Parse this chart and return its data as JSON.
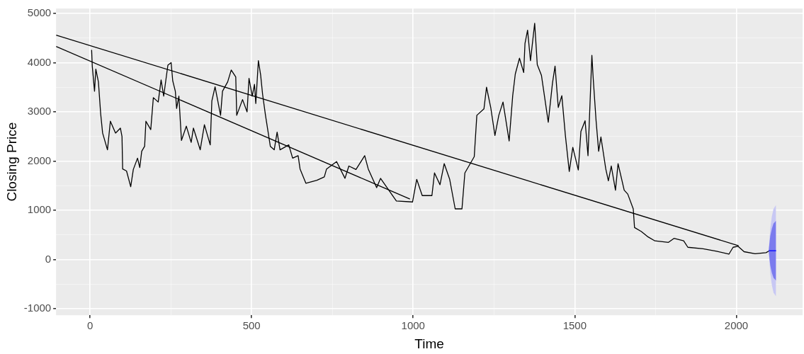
{
  "chart_data": {
    "type": "line",
    "xlabel": "Time",
    "ylabel": "Closing Price",
    "grid": true,
    "legend": false,
    "marker": "none",
    "line_style": "solid",
    "xlim": [
      -105,
      2205
    ],
    "ylim": [
      -1130,
      5100
    ],
    "xticks": [
      0,
      {
        "value": 250,
        "label": null
      },
      500,
      {
        "value": 750,
        "label": null
      },
      1000,
      {
        "value": 1250,
        "label": null
      },
      1500,
      {
        "value": 1750,
        "label": null
      },
      2000
    ],
    "yticks": [
      -1000,
      {
        "value": -500,
        "label": null
      },
      0,
      {
        "value": 500,
        "label": null
      },
      1000,
      {
        "value": 1500,
        "label": null
      },
      2000,
      {
        "value": 2500,
        "label": null
      },
      3000,
      {
        "value": 3500,
        "label": null
      },
      4000,
      {
        "value": 4500,
        "label": null
      },
      5000
    ],
    "series": [
      {
        "color": "#000000",
        "x": [
          5,
          7,
          14,
          18,
          26,
          33,
          39,
          54,
          63,
          79,
          94,
          99,
          101,
          113,
          126,
          134,
          147,
          154,
          160,
          169,
          173,
          188,
          196,
          211,
          220,
          228,
          241,
          251,
          256,
          264,
          268,
          275,
          283,
          298,
          313,
          320,
          341,
          354,
          372,
          377,
          387,
          404,
          410,
          426,
          437,
          451,
          454,
          472,
          486,
          492,
          502,
          509,
          513,
          521,
          528,
          534,
          543,
          558,
          570,
          579,
          588,
          615,
          627,
          644,
          650,
          668,
          702,
          725,
          732,
          763,
          789,
          801,
          823,
          850,
          861,
          887,
          899,
          948,
          998,
          1011,
          1028,
          1058,
          1066,
          1083,
          1096,
          1113,
          1130,
          1151,
          1160,
          1189,
          1197,
          1219,
          1227,
          1240,
          1253,
          1265,
          1278,
          1297,
          1308,
          1316,
          1329,
          1342,
          1346,
          1354,
          1363,
          1376,
          1384,
          1397,
          1418,
          1431,
          1439,
          1449,
          1460,
          1471,
          1483,
          1494,
          1511,
          1519,
          1532,
          1541,
          1553,
          1557,
          1566,
          1574,
          1581,
          1596,
          1604,
          1613,
          1626,
          1634,
          1653,
          1664,
          1681,
          1685,
          1706,
          1727,
          1748,
          1790,
          1807,
          1837,
          1850,
          1897,
          1939,
          1977,
          1990,
          2005,
          2024,
          2058,
          2092,
          2100
        ],
        "values": [
          4260,
          3930,
          3420,
          3870,
          3610,
          2960,
          2570,
          2230,
          2810,
          2570,
          2670,
          2500,
          1840,
          1800,
          1480,
          1830,
          2060,
          1870,
          2200,
          2300,
          2810,
          2640,
          3290,
          3200,
          3650,
          3320,
          3950,
          4000,
          3630,
          3420,
          3070,
          3320,
          2420,
          2710,
          2380,
          2670,
          2230,
          2740,
          2330,
          3220,
          3510,
          2930,
          3420,
          3610,
          3850,
          3710,
          2930,
          3250,
          3000,
          3680,
          3320,
          3560,
          3170,
          4040,
          3750,
          3360,
          2930,
          2300,
          2230,
          2590,
          2230,
          2330,
          2060,
          2110,
          1840,
          1550,
          1610,
          1680,
          1840,
          1990,
          1650,
          1900,
          1830,
          2110,
          1840,
          1460,
          1650,
          1190,
          1170,
          1630,
          1300,
          1300,
          1760,
          1520,
          1950,
          1630,
          1030,
          1030,
          1760,
          2090,
          2930,
          3060,
          3500,
          3090,
          2520,
          2930,
          3200,
          2410,
          3330,
          3770,
          4090,
          3800,
          4390,
          4660,
          4040,
          4800,
          3960,
          3740,
          2790,
          3580,
          3930,
          3090,
          3330,
          2520,
          1790,
          2280,
          1820,
          2600,
          2820,
          2110,
          4150,
          3690,
          2820,
          2200,
          2490,
          1840,
          1600,
          1900,
          1410,
          1950,
          1410,
          1330,
          1030,
          650,
          570,
          460,
          380,
          350,
          430,
          380,
          250,
          220,
          170,
          110,
          250,
          270,
          160,
          120,
          140,
          170
        ]
      },
      {
        "color": "#000000",
        "x": [
          -105,
          2007
        ],
        "values": [
          4560,
          280
        ]
      },
      {
        "color": "#000000",
        "x": [
          -105,
          990
        ],
        "values": [
          4330,
          1230
        ]
      },
      {
        "color": "#c8c8f4",
        "x": [
          2100,
          2105,
          2110,
          2115,
          2123
        ],
        "values": [
          null,
          null,
          null,
          null,
          null
        ],
        "lower": [
          180,
          -270,
          -520,
          -670,
          -750
        ],
        "upper": [
          180,
          630,
          880,
          1030,
          1110
        ]
      },
      {
        "color": "#7b7bee",
        "x": [
          2100,
          2105,
          2110,
          2115,
          2123
        ],
        "values": [
          null,
          null,
          null,
          null,
          null
        ],
        "lower": [
          180,
          -120,
          -270,
          -370,
          -430
        ],
        "upper": [
          180,
          480,
          630,
          730,
          790
        ]
      },
      {
        "color": "#0000ff",
        "x": [
          2100,
          2123
        ],
        "values": [
          180,
          180
        ]
      }
    ]
  }
}
